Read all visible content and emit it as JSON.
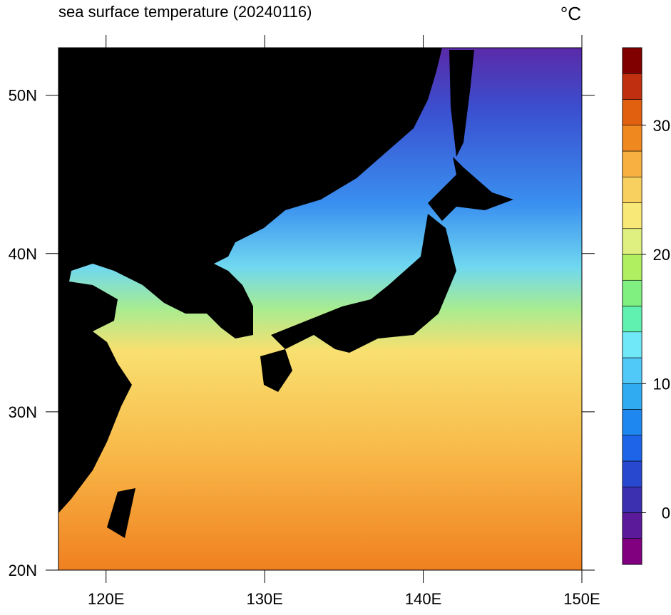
{
  "title": "sea surface temperature (20240116)",
  "units": "°C",
  "map": {
    "xlim": [
      117,
      150
    ],
    "ylim": [
      20,
      53
    ],
    "xticks": [
      {
        "value": 120,
        "label": "120E"
      },
      {
        "value": 130,
        "label": "130E"
      },
      {
        "value": 140,
        "label": "140E"
      },
      {
        "value": 150,
        "label": "150E"
      }
    ],
    "yticks": [
      {
        "value": 20,
        "label": "20N"
      },
      {
        "value": 30,
        "label": "30N"
      },
      {
        "value": 40,
        "label": "40N"
      },
      {
        "value": 50,
        "label": "50N"
      }
    ]
  },
  "colorbar": {
    "clim": [
      -4,
      36
    ],
    "ticks": [
      0,
      10,
      20,
      30
    ],
    "colors": [
      "#800080",
      "#5a1a9a",
      "#3c30b0",
      "#2848d0",
      "#1e64e8",
      "#1e88f0",
      "#30aaf0",
      "#50c8f8",
      "#70e8f8",
      "#60f0b0",
      "#80f080",
      "#b0f060",
      "#e0f080",
      "#f8e878",
      "#f8d060",
      "#f8b040",
      "#f08820",
      "#e06010",
      "#c03010",
      "#800000"
    ]
  }
}
